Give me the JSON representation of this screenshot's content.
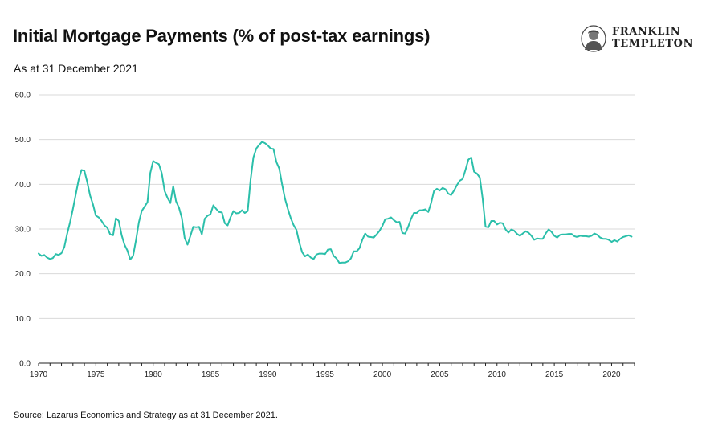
{
  "header": {
    "title": "Initial Mortgage Payments (% of post-tax earnings)",
    "subtitle": "As at 31 December 2021"
  },
  "logo": {
    "line1": "FRANKLIN",
    "line2": "TEMPLETON"
  },
  "footer": {
    "source": "Source: Lazarus Economics and Strategy as at 31 December 2021."
  },
  "chart_data": {
    "type": "line",
    "title": "Initial Mortgage Payments (% of post-tax earnings)",
    "subtitle": "As at 31 December 2021",
    "xlabel": "",
    "ylabel": "",
    "xlim": [
      1970,
      2022
    ],
    "ylim": [
      0,
      60
    ],
    "y_ticks": [
      0,
      10,
      20,
      30,
      40,
      50,
      60
    ],
    "y_tick_labels": [
      "0.0",
      "10.0",
      "20.0",
      "30.0",
      "40.0",
      "50.0",
      "60.0"
    ],
    "x_ticks": [
      1970,
      1975,
      1980,
      1985,
      1990,
      1995,
      2000,
      2005,
      2010,
      2015,
      2020
    ],
    "x_tick_labels": [
      "1970",
      "1975",
      "1980",
      "1985",
      "1990",
      "1995",
      "2000",
      "2005",
      "2010",
      "2015",
      "2020"
    ],
    "grid": "horizontal",
    "legend": "none",
    "line_color": "#2bbfaa",
    "series": [
      {
        "x": [
          1970.0,
          1970.25,
          1970.5,
          1970.75,
          1971.0,
          1971.25,
          1971.5,
          1971.75,
          1972.0,
          1972.25,
          1972.5,
          1972.75,
          1973.0,
          1973.25,
          1973.5,
          1973.75,
          1974.0,
          1974.25,
          1974.5,
          1974.75,
          1975.0,
          1975.25,
          1975.5,
          1975.75,
          1976.0,
          1976.25,
          1976.5,
          1976.75,
          1977.0,
          1977.25,
          1977.5,
          1977.75,
          1978.0,
          1978.25,
          1978.5,
          1978.75,
          1979.0,
          1979.25,
          1979.5,
          1979.75,
          1980.0,
          1980.25,
          1980.5,
          1980.75,
          1981.0,
          1981.25,
          1981.5,
          1981.75,
          1982.0,
          1982.25,
          1982.5,
          1982.75,
          1983.0,
          1983.25,
          1983.5,
          1983.75,
          1984.0,
          1984.25,
          1984.5,
          1984.75,
          1985.0,
          1985.25,
          1985.5,
          1985.75,
          1986.0,
          1986.25,
          1986.5,
          1986.75,
          1987.0,
          1987.25,
          1987.5,
          1987.75,
          1988.0,
          1988.25,
          1988.5,
          1988.75,
          1989.0,
          1989.25,
          1989.5,
          1989.75,
          1990.0,
          1990.25,
          1990.5,
          1990.75,
          1991.0,
          1991.25,
          1991.5,
          1991.75,
          1992.0,
          1992.25,
          1992.5,
          1992.75,
          1993.0,
          1993.25,
          1993.5,
          1993.75,
          1994.0,
          1994.25,
          1994.5,
          1994.75,
          1995.0,
          1995.25,
          1995.5,
          1995.75,
          1996.0,
          1996.25,
          1996.5,
          1996.75,
          1997.0,
          1997.25,
          1997.5,
          1997.75,
          1998.0,
          1998.25,
          1998.5,
          1998.75,
          1999.0,
          1999.25,
          1999.5,
          1999.75,
          2000.0,
          2000.25,
          2000.5,
          2000.75,
          2001.0,
          2001.25,
          2001.5,
          2001.75,
          2002.0,
          2002.25,
          2002.5,
          2002.75,
          2003.0,
          2003.25,
          2003.5,
          2003.75,
          2004.0,
          2004.25,
          2004.5,
          2004.75,
          2005.0,
          2005.25,
          2005.5,
          2005.75,
          2006.0,
          2006.25,
          2006.5,
          2006.75,
          2007.0,
          2007.25,
          2007.5,
          2007.75,
          2008.0,
          2008.25,
          2008.5,
          2008.75,
          2009.0,
          2009.25,
          2009.5,
          2009.75,
          2010.0,
          2010.25,
          2010.5,
          2010.75,
          2011.0,
          2011.25,
          2011.5,
          2011.75,
          2012.0,
          2012.25,
          2012.5,
          2012.75,
          2013.0,
          2013.25,
          2013.5,
          2013.75,
          2014.0,
          2014.25,
          2014.5,
          2014.75,
          2015.0,
          2015.25,
          2015.5,
          2015.75,
          2016.0,
          2016.25,
          2016.5,
          2016.75,
          2017.0,
          2017.25,
          2017.5,
          2017.75,
          2018.0,
          2018.25,
          2018.5,
          2018.75,
          2019.0,
          2019.25,
          2019.5,
          2019.75,
          2020.0,
          2020.25,
          2020.5,
          2020.75,
          2021.0,
          2021.25,
          2021.5,
          2021.75
        ],
        "values": [
          24.5,
          24.0,
          24.2,
          23.6,
          23.3,
          23.5,
          24.4,
          24.2,
          24.6,
          26.0,
          29.0,
          31.5,
          34.5,
          37.8,
          41.0,
          43.2,
          43.0,
          40.5,
          37.5,
          35.5,
          33.0,
          32.6,
          31.8,
          30.8,
          30.3,
          28.8,
          28.6,
          32.4,
          31.8,
          28.6,
          26.5,
          25.2,
          23.2,
          24.0,
          27.5,
          31.5,
          34.0,
          35.0,
          36.0,
          42.5,
          45.2,
          44.8,
          44.5,
          42.5,
          38.5,
          37.0,
          35.8,
          39.6,
          36.2,
          34.8,
          32.5,
          28.0,
          26.5,
          28.5,
          30.5,
          30.4,
          30.5,
          28.8,
          32.3,
          33.0,
          33.3,
          35.3,
          34.5,
          33.8,
          33.7,
          31.3,
          30.8,
          32.6,
          34.0,
          33.5,
          33.6,
          34.2,
          33.6,
          34.0,
          41.0,
          46.0,
          48.0,
          48.8,
          49.5,
          49.2,
          48.7,
          48.0,
          47.9,
          45.0,
          43.5,
          40.0,
          36.8,
          34.5,
          32.5,
          30.9,
          29.8,
          27.0,
          24.8,
          23.9,
          24.3,
          23.6,
          23.3,
          24.3,
          24.5,
          24.5,
          24.4,
          25.4,
          25.5,
          24.0,
          23.4,
          22.4,
          22.5,
          22.5,
          22.8,
          23.4,
          25.0,
          25.0,
          25.7,
          27.6,
          29.0,
          28.3,
          28.2,
          28.1,
          28.8,
          29.6,
          30.7,
          32.2,
          32.3,
          32.6,
          32.0,
          31.5,
          31.6,
          29.1,
          29.0,
          30.5,
          32.3,
          33.6,
          33.6,
          34.2,
          34.2,
          34.4,
          33.8,
          35.8,
          38.5,
          39.0,
          38.6,
          39.2,
          38.9,
          37.9,
          37.6,
          38.6,
          39.8,
          40.8,
          41.2,
          43.2,
          45.5,
          46.0,
          42.8,
          42.4,
          41.5,
          36.8,
          30.5,
          30.4,
          31.8,
          31.8,
          31.0,
          31.4,
          31.3,
          29.9,
          29.2,
          29.9,
          29.6,
          28.9,
          28.5,
          29.0,
          29.5,
          29.2,
          28.5,
          27.6,
          27.9,
          27.8,
          27.8,
          29.0,
          29.9,
          29.4,
          28.5,
          28.1,
          28.7,
          28.8,
          28.8,
          28.9,
          28.9,
          28.4,
          28.2,
          28.5,
          28.4,
          28.4,
          28.3,
          28.5,
          29.0,
          28.7,
          28.1,
          27.8,
          27.8,
          27.6,
          27.1,
          27.5,
          27.2,
          27.8,
          28.2,
          28.4,
          28.6,
          28.3
        ]
      }
    ]
  }
}
